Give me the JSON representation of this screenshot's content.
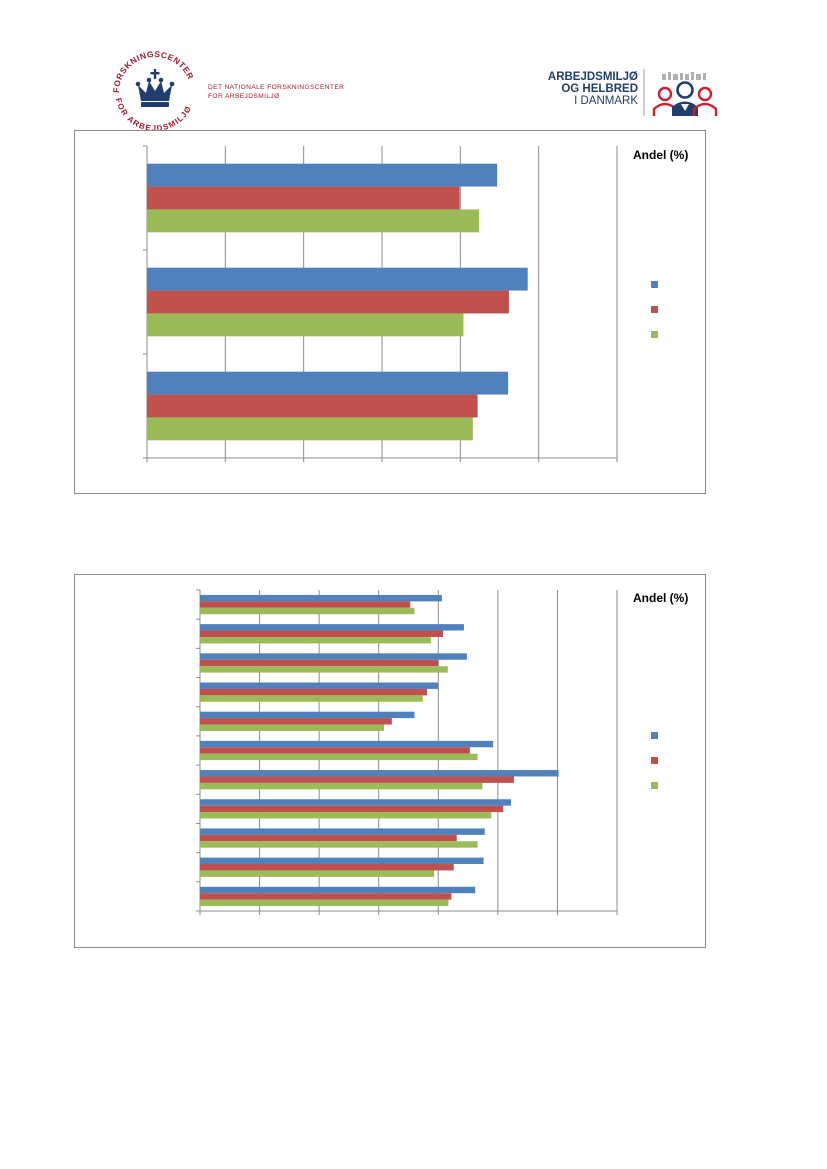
{
  "header": {
    "left_logo": {
      "seal_text_top": "FORSKNINGSCENTER",
      "seal_text_bottom": "FOR ARBEJDSMILJØ",
      "line1": "DET NATIONALE FORSKNINGSCENTER",
      "line2": "FOR ARBEJDSMILJØ"
    },
    "right_logo": {
      "line1": "ARBEJDSMILJØ",
      "line2": "OG HELBRED",
      "line3": "I DANMARK"
    }
  },
  "colors": {
    "series_blue": "#4f81bd",
    "series_red": "#c0504d",
    "series_green": "#9bbb59",
    "grid": "#8c8c8c"
  },
  "chart_data": [
    {
      "type": "bar",
      "orientation": "horizontal",
      "title": "",
      "legend_title": "Andel (%)",
      "legend_position": "right",
      "grid": true,
      "xlim": [
        0,
        60
      ],
      "x_gridlines": 6,
      "categories_count": 3,
      "series": [
        {
          "color": "#4f81bd",
          "values": [
            44.7,
            48.6,
            46.1
          ]
        },
        {
          "color": "#c0504d",
          "values": [
            39.9,
            46.2,
            42.2
          ]
        },
        {
          "color": "#9bbb59",
          "values": [
            42.4,
            40.4,
            41.6
          ]
        }
      ]
    },
    {
      "type": "bar",
      "orientation": "horizontal",
      "title": "",
      "legend_title": "Andel (%)",
      "legend_position": "right",
      "grid": true,
      "xlim": [
        0,
        70
      ],
      "x_gridlines": 7,
      "categories_count": 11,
      "series": [
        {
          "color": "#4f81bd",
          "values": [
            40.6,
            44.3,
            44.8,
            40.0,
            36.0,
            49.2,
            60.2,
            52.2,
            47.8,
            47.6,
            46.2
          ]
        },
        {
          "color": "#c0504d",
          "values": [
            35.3,
            40.8,
            40.0,
            38.1,
            32.2,
            45.3,
            52.7,
            50.9,
            43.1,
            42.6,
            42.2
          ]
        },
        {
          "color": "#9bbb59",
          "values": [
            36.0,
            38.8,
            41.6,
            37.4,
            30.9,
            46.6,
            47.4,
            48.9,
            46.6,
            39.3,
            41.7
          ]
        }
      ]
    }
  ]
}
